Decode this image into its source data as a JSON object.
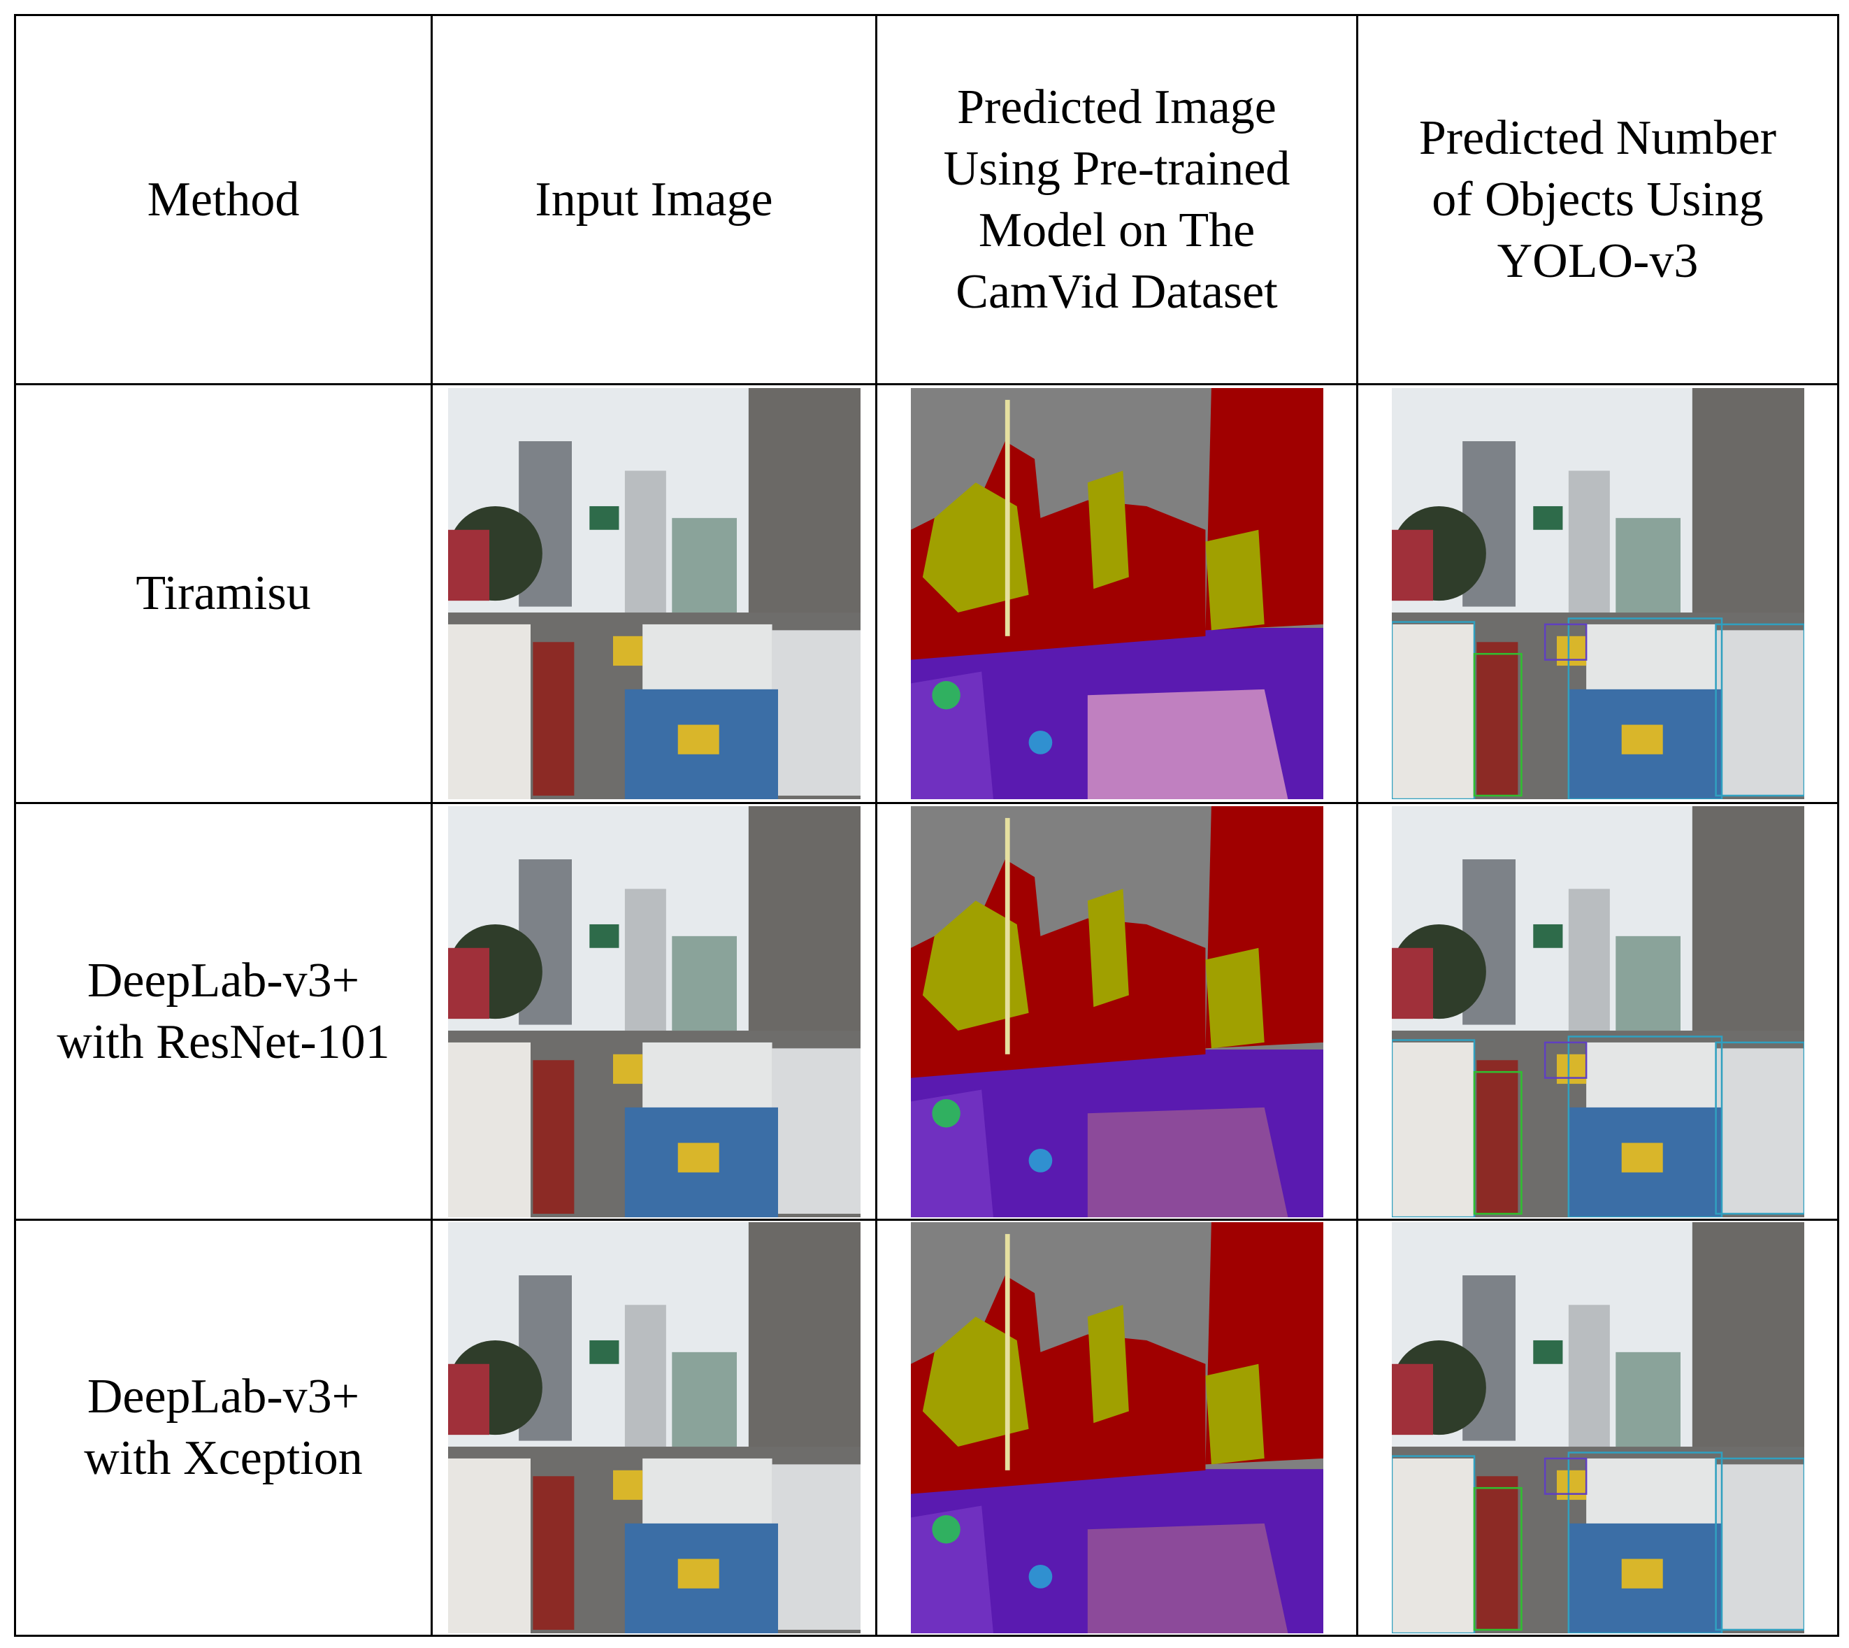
{
  "table": {
    "header": [
      [
        "Method"
      ],
      [
        "Input Image"
      ],
      [
        "Predicted Image",
        "Using Pre-trained",
        "Model on The",
        "CamVid Dataset"
      ],
      [
        "Predicted Number",
        "of Objects Using",
        "YOLO-v3"
      ]
    ],
    "rows": [
      [
        "Tiramisu"
      ],
      [
        "DeepLab-v3+",
        "with ResNet-101"
      ],
      [
        "DeepLab-v3+",
        "with Xception"
      ]
    ]
  }
}
